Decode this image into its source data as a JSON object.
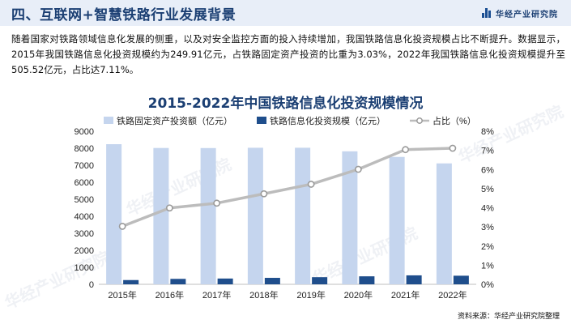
{
  "header": {
    "title": "四、互联网+智慧铁路行业发展背景",
    "brand": "华经产业研究院"
  },
  "intro_text": "随着国家对铁路领域信息化发展的侧重，以及对安全监控方面的投入持续增加，我国铁路信息化投资规模占比不断提升。数据显示，2015年我国铁路信息化投资规模约为249.91亿元，占铁路固定资产投资的比重为3.03%，2022年我国铁路信息化投资规模提升至505.52亿元，占比达7.11%。",
  "watermark": "华经产业研究院",
  "source": "资料来源：华经产业研究院整理",
  "colors": {
    "header_bg": "#e8eef8",
    "title": "#1b3f73",
    "bar_fixed": "#c5d5ee",
    "bar_info": "#1f4e8c",
    "line": "#bcbcbc",
    "marker": "#ffffff",
    "marker_stroke": "#9a9a9a"
  },
  "chart_data": {
    "type": "bar",
    "title": "2015-2022年中国铁路信息化投资规模情况",
    "categories": [
      "2015年",
      "2016年",
      "2017年",
      "2018年",
      "2019年",
      "2020年",
      "2021年",
      "2022年"
    ],
    "series": [
      {
        "name": "铁路固定资产投资额（亿元）",
        "type": "bar",
        "axis": "left",
        "values": [
          8238,
          8015,
          8010,
          8028,
          8029,
          7819,
          7489,
          7109
        ]
      },
      {
        "name": "铁路信息化投资规模（亿元）",
        "type": "bar",
        "axis": "left",
        "values": [
          249.91,
          320,
          340,
          380,
          420,
          470,
          527,
          505.52
        ]
      },
      {
        "name": "占比（%）",
        "type": "line",
        "axis": "right",
        "values": [
          3.03,
          3.99,
          4.24,
          4.73,
          5.23,
          6.01,
          7.04,
          7.11
        ]
      }
    ],
    "y_left": {
      "min": 0,
      "max": 9000,
      "ticks": [
        "0",
        "1000",
        "2000",
        "3000",
        "4000",
        "5000",
        "6000",
        "7000",
        "8000",
        "9000"
      ]
    },
    "y_right": {
      "min": 0,
      "max": 8,
      "ticks": [
        "0%",
        "1%",
        "2%",
        "3%",
        "4%",
        "5%",
        "6%",
        "7%",
        "8%"
      ]
    },
    "legend_position": "top"
  }
}
